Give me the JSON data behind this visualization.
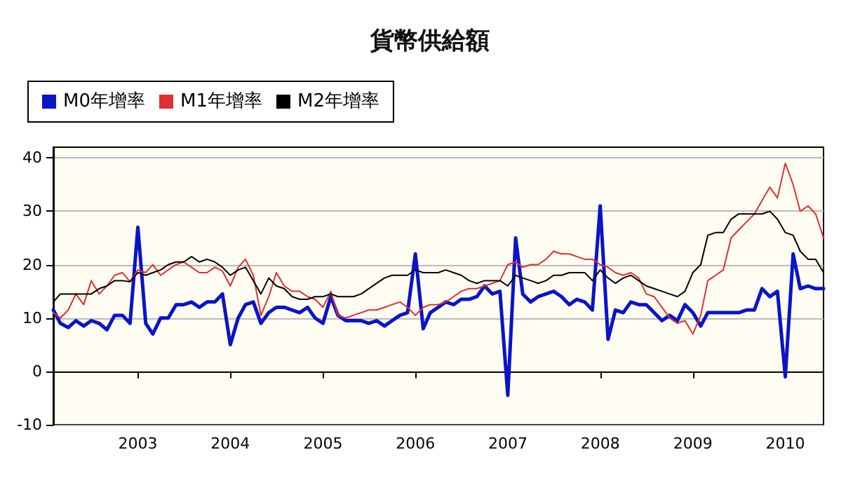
{
  "chart_data": {
    "type": "line",
    "title": "貨幣供給額",
    "x": [
      "2002-02",
      "2002-03",
      "2002-04",
      "2002-05",
      "2002-06",
      "2002-07",
      "2002-08",
      "2002-09",
      "2002-10",
      "2002-11",
      "2002-12",
      "2003-01",
      "2003-02",
      "2003-03",
      "2003-04",
      "2003-05",
      "2003-06",
      "2003-07",
      "2003-08",
      "2003-09",
      "2003-10",
      "2003-11",
      "2003-12",
      "2004-01",
      "2004-02",
      "2004-03",
      "2004-04",
      "2004-05",
      "2004-06",
      "2004-07",
      "2004-08",
      "2004-09",
      "2004-10",
      "2004-11",
      "2004-12",
      "2005-01",
      "2005-02",
      "2005-03",
      "2005-04",
      "2005-05",
      "2005-06",
      "2005-07",
      "2005-08",
      "2005-09",
      "2005-10",
      "2005-11",
      "2005-12",
      "2006-01",
      "2006-02",
      "2006-03",
      "2006-04",
      "2006-05",
      "2006-06",
      "2006-07",
      "2006-08",
      "2006-09",
      "2006-10",
      "2006-11",
      "2006-12",
      "2007-01",
      "2007-02",
      "2007-03",
      "2007-04",
      "2007-05",
      "2007-06",
      "2007-07",
      "2007-08",
      "2007-09",
      "2007-10",
      "2007-11",
      "2007-12",
      "2008-01",
      "2008-02",
      "2008-03",
      "2008-04",
      "2008-05",
      "2008-06",
      "2008-07",
      "2008-08",
      "2008-09",
      "2008-10",
      "2008-11",
      "2008-12",
      "2009-01",
      "2009-02",
      "2009-03",
      "2009-04",
      "2009-05",
      "2009-06",
      "2009-07",
      "2009-08",
      "2009-09",
      "2009-10",
      "2009-11",
      "2009-12",
      "2010-01",
      "2010-02",
      "2010-03",
      "2010-04",
      "2010-05",
      "2010-06"
    ],
    "series": [
      {
        "name": "M0年增率",
        "color": "#0a14c8",
        "values": [
          11.5,
          9,
          8.2,
          9.5,
          8.5,
          9.5,
          9,
          7.8,
          10.5,
          10.5,
          9,
          27,
          9,
          7,
          10,
          10,
          12.5,
          12.5,
          13,
          12,
          13,
          13,
          14.5,
          5,
          10,
          12.5,
          13,
          9,
          11,
          12,
          12,
          11.5,
          11,
          12,
          10,
          9,
          14,
          10.5,
          9.5,
          9.5,
          9.5,
          9,
          9.5,
          8.5,
          9.5,
          10.5,
          11,
          22,
          8,
          11,
          12,
          13,
          12.5,
          13.5,
          13.5,
          14,
          16,
          14.5,
          15,
          -4.5,
          25,
          14.5,
          13,
          14,
          14.5,
          15,
          14,
          12.5,
          13.5,
          13,
          11.5,
          31,
          6,
          11.5,
          11,
          13,
          12.5,
          12.5,
          11,
          9.5,
          10.5,
          9.5,
          12.5,
          11,
          8.5,
          11,
          11,
          11,
          11,
          11,
          11.5,
          11.5,
          15.5,
          14,
          15,
          -1,
          22,
          15.5,
          16,
          15.5,
          15.5
        ]
      },
      {
        "name": "M1年增率",
        "color": "#e03030",
        "values": [
          11,
          10,
          11.5,
          14.5,
          12.5,
          17,
          14.5,
          16,
          18,
          18.5,
          16.8,
          19,
          18.5,
          20,
          18,
          19,
          20,
          20.5,
          19.5,
          18.5,
          18.5,
          19.5,
          18.8,
          16,
          19.5,
          21,
          18,
          10.5,
          14,
          18.5,
          16,
          15,
          15,
          14,
          13.5,
          12,
          15,
          10.5,
          10,
          10.5,
          11,
          11.5,
          11.5,
          12,
          12.5,
          13,
          12,
          10.5,
          12,
          12.5,
          12.5,
          13,
          14,
          15,
          15.5,
          15.5,
          16,
          16.5,
          17,
          20,
          20.5,
          19.5,
          20,
          20,
          21,
          22.5,
          22,
          22,
          21.5,
          21,
          21,
          20,
          19.5,
          18.5,
          18,
          18.5,
          17.5,
          14.5,
          14,
          12,
          10,
          9,
          9.5,
          7,
          10.5,
          17,
          18,
          19,
          25,
          26.5,
          28,
          29.5,
          32,
          34.5,
          32.5,
          39,
          35,
          30,
          31,
          29.5,
          25
        ]
      },
      {
        "name": "M2年增率",
        "color": "#000000",
        "values": [
          13,
          14.5,
          14.5,
          14.5,
          14.5,
          14.5,
          15.5,
          16,
          17,
          17,
          16.8,
          18.5,
          18,
          18.5,
          19,
          20,
          20.5,
          20.5,
          21.5,
          20.5,
          21,
          20.5,
          19.5,
          18,
          19,
          19.5,
          17,
          14.5,
          17.5,
          16,
          15.5,
          14,
          13.5,
          13.5,
          14,
          14,
          14.5,
          14,
          14,
          14,
          14.5,
          15.5,
          16.5,
          17.5,
          18,
          18,
          18,
          19,
          18.5,
          18.5,
          18.5,
          19,
          18.5,
          18,
          17,
          16.5,
          17,
          17,
          17,
          16,
          18,
          17.5,
          17,
          16.5,
          17,
          18,
          18,
          18.5,
          18.5,
          18.5,
          17,
          19,
          17.5,
          16.5,
          17.5,
          18,
          17,
          16,
          15.5,
          15,
          14.5,
          14,
          15,
          18.5,
          20,
          25.5,
          26,
          26,
          28.5,
          29.5,
          29.5,
          29.5,
          29.5,
          30,
          28.5,
          26,
          25.5,
          22.5,
          21,
          21,
          18.5
        ]
      }
    ],
    "xlim": [
      "2002-02",
      "2010-06"
    ],
    "xticks": [
      "2003",
      "2004",
      "2005",
      "2006",
      "2007",
      "2008",
      "2009",
      "2010"
    ],
    "ylim": [
      -10,
      42
    ],
    "yticks": [
      -10,
      0,
      10,
      20,
      30,
      40
    ],
    "grid": "y",
    "legend": "top left",
    "marker": "none",
    "line_style": "solid"
  }
}
